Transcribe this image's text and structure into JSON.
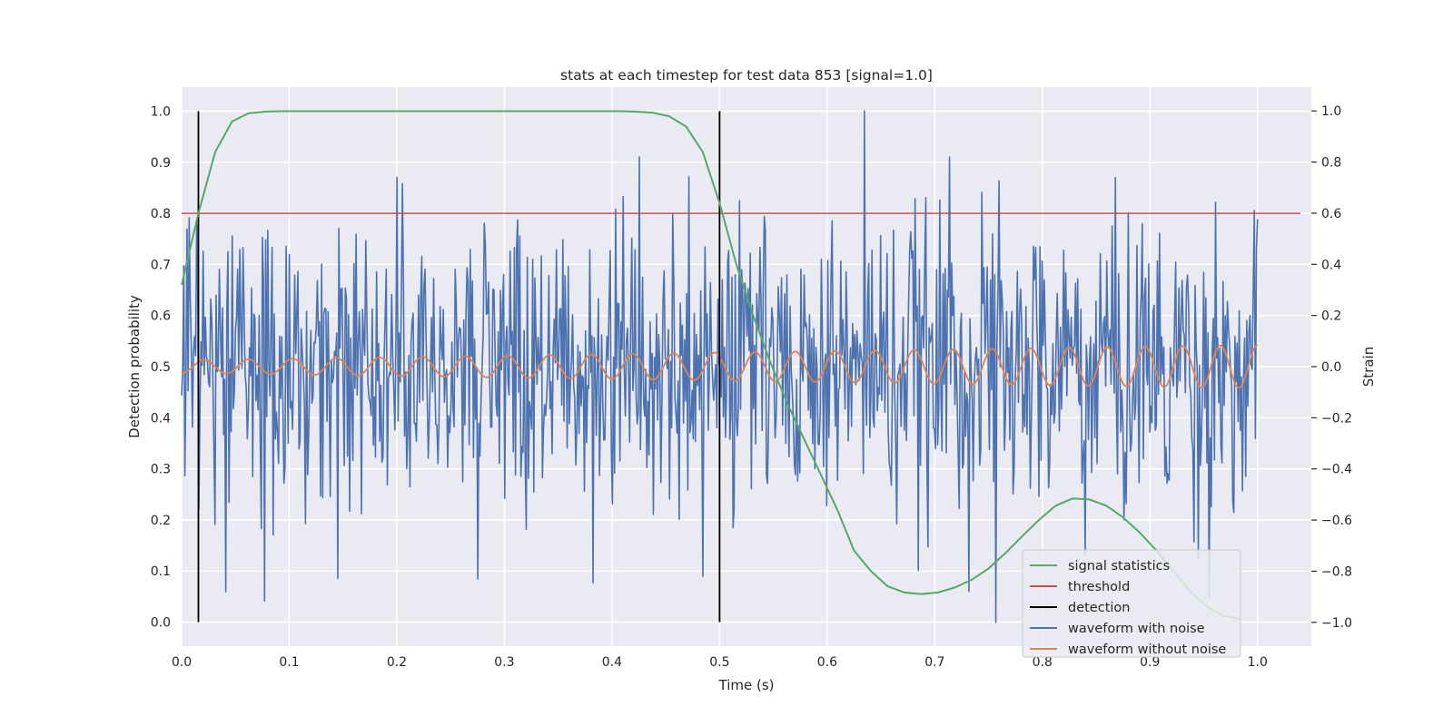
{
  "chart_data": {
    "type": "line",
    "title": "stats at each timestep for test data 853 [signal=1.0]",
    "xlabel": "Time (s)",
    "ylabel_left": "Detection probability",
    "ylabel_right": "Strain",
    "xlim": [
      0.0,
      1.05
    ],
    "ylim_left": [
      -0.047,
      1.047
    ],
    "ylim_right": [
      -1.093,
      1.093
    ],
    "x_ticks": [
      0.0,
      0.1,
      0.2,
      0.3,
      0.4,
      0.5,
      0.6,
      0.7,
      0.8,
      0.9,
      1.0
    ],
    "x_tick_labels": [
      "0.0",
      "0.1",
      "0.2",
      "0.3",
      "0.4",
      "0.5",
      "0.6",
      "0.7",
      "0.8",
      "0.9",
      "1.0"
    ],
    "y_left_ticks": [
      0.0,
      0.1,
      0.2,
      0.3,
      0.4,
      0.5,
      0.6,
      0.7,
      0.8,
      0.9,
      1.0
    ],
    "y_left_tick_labels": [
      "0.0",
      "0.1",
      "0.2",
      "0.3",
      "0.4",
      "0.5",
      "0.6",
      "0.7",
      "0.8",
      "0.9",
      "1.0"
    ],
    "y_right_ticks": [
      -1.0,
      -0.8,
      -0.6,
      -0.4,
      -0.2,
      0.0,
      0.2,
      0.4,
      0.6,
      0.8,
      1.0
    ],
    "y_right_tick_labels": [
      "−1.0",
      "−0.8",
      "−0.6",
      "−0.4",
      "−0.2",
      "0.0",
      "0.2",
      "0.4",
      "0.6",
      "0.8",
      "1.0"
    ],
    "grid": true,
    "legend_position": "lower-right",
    "colors": {
      "background": "#eaeaf2",
      "grid": "#ffffff",
      "signal": "#55a868",
      "threshold": "#c44e52",
      "detection": "#000000",
      "noisy": "#4c72b0",
      "clean": "#dd8452"
    },
    "series": [
      {
        "name": "signal statistics",
        "axis": "left",
        "x": [
          0.0,
          0.0156,
          0.0312,
          0.0469,
          0.0625,
          0.0781,
          0.0938,
          0.1094,
          0.125,
          0.1406,
          0.1562,
          0.1719,
          0.1875,
          0.2031,
          0.2188,
          0.2344,
          0.25,
          0.2656,
          0.2812,
          0.2969,
          0.3125,
          0.3281,
          0.3438,
          0.3594,
          0.375,
          0.3906,
          0.4062,
          0.4219,
          0.4375,
          0.4531,
          0.4688,
          0.4844,
          0.5,
          0.5156,
          0.5312,
          0.5469,
          0.5625,
          0.5781,
          0.5938,
          0.6094,
          0.625,
          0.6406,
          0.6562,
          0.6719,
          0.6875,
          0.7031,
          0.7188,
          0.7344,
          0.75,
          0.7656,
          0.7812,
          0.7969,
          0.8125,
          0.8281,
          0.8438,
          0.8594,
          0.875,
          0.8906,
          0.9062,
          0.9219,
          0.9375,
          0.9531,
          0.9688,
          0.9844
        ],
        "values": [
          0.66,
          0.8,
          0.92,
          0.98,
          0.996,
          0.999,
          1.0,
          1.0,
          1.0,
          1.0,
          1.0,
          1.0,
          1.0,
          1.0,
          1.0,
          1.0,
          1.0,
          1.0,
          1.0,
          1.0,
          1.0,
          1.0,
          1.0,
          1.0,
          1.0,
          1.0,
          1.0,
          0.999,
          0.997,
          0.99,
          0.97,
          0.92,
          0.82,
          0.7,
          0.6,
          0.51,
          0.43,
          0.36,
          0.29,
          0.22,
          0.14,
          0.1,
          0.07,
          0.058,
          0.055,
          0.058,
          0.068,
          0.083,
          0.105,
          0.135,
          0.168,
          0.2,
          0.228,
          0.242,
          0.24,
          0.228,
          0.205,
          0.175,
          0.14,
          0.1,
          0.06,
          0.03,
          0.012,
          0.006
        ]
      },
      {
        "name": "threshold",
        "axis": "left",
        "x": [
          0.0,
          1.04
        ],
        "values": [
          0.8,
          0.8
        ]
      },
      {
        "name": "detection",
        "axis": "left",
        "events": [
          {
            "x": 0.0156,
            "y_min": 0.0,
            "y_max": 1.0
          },
          {
            "x": 0.5,
            "y_min": 0.0,
            "y_max": 1.0
          }
        ]
      },
      {
        "name": "waveform with noise",
        "axis": "right",
        "description_note": "",
        "x_range": [
          0.0,
          1.0
        ],
        "n_points": 1000,
        "approx_std": 0.28,
        "notable_values": [
          {
            "x": 0.016,
            "y": -0.56
          },
          {
            "x": 0.041,
            "y": -0.88
          },
          {
            "x": 0.2,
            "y": 0.74
          },
          {
            "x": 0.275,
            "y": -0.83
          },
          {
            "x": 0.425,
            "y": 0.82
          },
          {
            "x": 0.484,
            "y": -0.82
          },
          {
            "x": 0.635,
            "y": 1.0
          },
          {
            "x": 0.714,
            "y": 0.82
          },
          {
            "x": 0.757,
            "y": -1.0
          },
          {
            "x": 0.945,
            "y": -0.75
          }
        ]
      },
      {
        "name": "waveform without noise",
        "axis": "right",
        "x_range": [
          0.0,
          1.0
        ],
        "amplitude_start": 0.025,
        "amplitude_end": 0.085,
        "cycles_start_freq": 24,
        "cycles_end_freq": 29
      }
    ],
    "legend": [
      "signal statistics",
      "threshold",
      "detection",
      "waveform with noise",
      "waveform without noise"
    ]
  }
}
